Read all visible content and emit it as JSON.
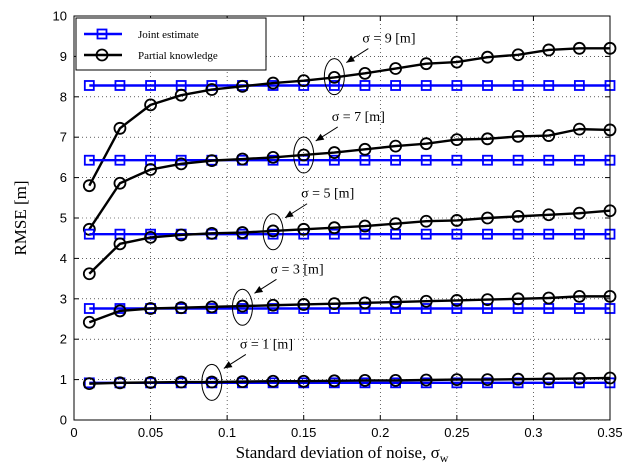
{
  "chart_data": {
    "type": "line",
    "xlabel": "Standard deviation of noise, σ",
    "xlabel_subscript": "w",
    "ylabel": "RMSE [m]",
    "xlim": [
      0,
      0.35
    ],
    "ylim": [
      0,
      10
    ],
    "xticks": [
      "0",
      "0.05",
      "0.1",
      "0.15",
      "0.2",
      "0.25",
      "0.3",
      "0.35"
    ],
    "yticks": [
      "0",
      "1",
      "2",
      "3",
      "4",
      "5",
      "6",
      "7",
      "8",
      "9",
      "10"
    ],
    "grid": true,
    "legend_position": "top-left",
    "x": [
      0.01,
      0.03,
      0.05,
      0.07,
      0.09,
      0.11,
      0.13,
      0.15,
      0.17,
      0.19,
      0.21,
      0.23,
      0.25,
      0.27,
      0.29,
      0.31,
      0.33,
      0.35
    ],
    "legend": [
      {
        "label": "Joint estimate",
        "color": "#0000ff",
        "marker": "square"
      },
      {
        "label": "Partial knowledge",
        "color": "#000000",
        "marker": "circle"
      }
    ],
    "series": [
      {
        "name": "Joint estimate",
        "group": "σ = 9 [m]",
        "marker": "square",
        "color": "#0000ff",
        "values": [
          8.28,
          8.28,
          8.28,
          8.28,
          8.28,
          8.28,
          8.28,
          8.28,
          8.28,
          8.28,
          8.28,
          8.28,
          8.28,
          8.28,
          8.28,
          8.28,
          8.28,
          8.28
        ]
      },
      {
        "name": "Partial knowledge",
        "group": "σ = 9 [m]",
        "marker": "circle",
        "color": "#000000",
        "values": [
          5.8,
          7.22,
          7.8,
          8.04,
          8.18,
          8.26,
          8.34,
          8.4,
          8.48,
          8.58,
          8.7,
          8.82,
          8.86,
          8.98,
          9.04,
          9.16,
          9.2,
          9.2
        ]
      },
      {
        "name": "Joint estimate",
        "group": "σ = 7 [m]",
        "marker": "square",
        "color": "#0000ff",
        "values": [
          6.43,
          6.43,
          6.43,
          6.43,
          6.43,
          6.43,
          6.43,
          6.43,
          6.43,
          6.43,
          6.43,
          6.43,
          6.43,
          6.43,
          6.43,
          6.43,
          6.43,
          6.43
        ]
      },
      {
        "name": "Partial knowledge",
        "group": "σ = 7 [m]",
        "marker": "circle",
        "color": "#000000",
        "values": [
          4.72,
          5.86,
          6.2,
          6.34,
          6.42,
          6.46,
          6.5,
          6.56,
          6.62,
          6.7,
          6.78,
          6.84,
          6.94,
          6.96,
          7.02,
          7.04,
          7.2,
          7.18
        ]
      },
      {
        "name": "Joint estimate",
        "group": "σ = 5 [m]",
        "marker": "square",
        "color": "#0000ff",
        "values": [
          4.6,
          4.6,
          4.6,
          4.6,
          4.6,
          4.6,
          4.6,
          4.6,
          4.6,
          4.6,
          4.6,
          4.6,
          4.6,
          4.6,
          4.6,
          4.6,
          4.6,
          4.6
        ]
      },
      {
        "name": "Partial knowledge",
        "group": "σ = 5 [m]",
        "marker": "circle",
        "color": "#000000",
        "values": [
          3.62,
          4.36,
          4.52,
          4.58,
          4.62,
          4.64,
          4.68,
          4.72,
          4.76,
          4.8,
          4.86,
          4.92,
          4.94,
          5.0,
          5.04,
          5.08,
          5.12,
          5.18
        ]
      },
      {
        "name": "Joint estimate",
        "group": "σ = 3 [m]",
        "marker": "square",
        "color": "#0000ff",
        "values": [
          2.76,
          2.76,
          2.76,
          2.76,
          2.76,
          2.76,
          2.76,
          2.76,
          2.76,
          2.76,
          2.76,
          2.76,
          2.76,
          2.76,
          2.76,
          2.76,
          2.76,
          2.76
        ]
      },
      {
        "name": "Partial knowledge",
        "group": "σ = 3 [m]",
        "marker": "circle",
        "color": "#000000",
        "values": [
          2.42,
          2.7,
          2.76,
          2.78,
          2.8,
          2.82,
          2.84,
          2.86,
          2.88,
          2.9,
          2.92,
          2.94,
          2.96,
          2.98,
          3.0,
          3.02,
          3.06,
          3.06
        ]
      },
      {
        "name": "Joint estimate",
        "group": "σ = 1 [m]",
        "marker": "square",
        "color": "#0000ff",
        "values": [
          0.92,
          0.92,
          0.92,
          0.92,
          0.92,
          0.92,
          0.92,
          0.92,
          0.92,
          0.92,
          0.92,
          0.92,
          0.92,
          0.92,
          0.92,
          0.92,
          0.92,
          0.92
        ]
      },
      {
        "name": "Partial knowledge",
        "group": "σ = 1 [m]",
        "marker": "circle",
        "color": "#000000",
        "values": [
          0.9,
          0.92,
          0.93,
          0.94,
          0.94,
          0.95,
          0.96,
          0.96,
          0.97,
          0.98,
          0.98,
          0.99,
          1.0,
          1.0,
          1.01,
          1.02,
          1.03,
          1.04
        ]
      }
    ],
    "annotations": [
      {
        "text": "σ = 9 [m]",
        "x": 0.17,
        "y": 8.5
      },
      {
        "text": "σ = 7 [m]",
        "x": 0.15,
        "y": 6.56
      },
      {
        "text": "σ = 5 [m]",
        "x": 0.13,
        "y": 4.66
      },
      {
        "text": "σ = 3 [m]",
        "x": 0.11,
        "y": 2.79
      },
      {
        "text": "σ = 1 [m]",
        "x": 0.09,
        "y": 0.93
      }
    ]
  }
}
